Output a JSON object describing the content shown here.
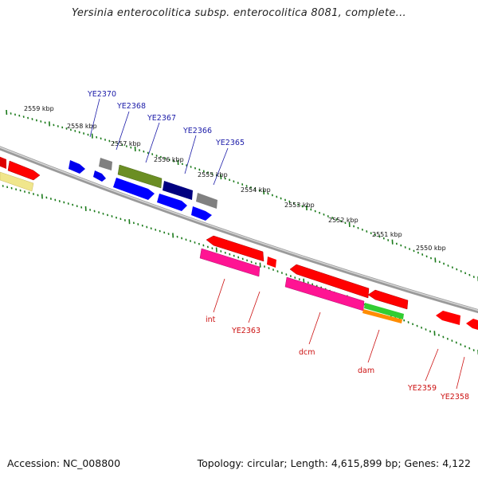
{
  "header": {
    "title": "Yersinia enterocolitica subsp. enterocolitica 8081, complete..."
  },
  "footer": {
    "accession": "Accession: NC_008800",
    "summary": "Topology: circular; Length: 4,615,899 bp; Genes: 4,122"
  },
  "ruler": {
    "ticks": [
      "2559 kbp",
      "2558 kbp",
      "2557 kbp",
      "2556 kbp",
      "2555 kbp",
      "2554 kbp",
      "2553 kbp",
      "2552 kbp",
      "2551 kbp",
      "2550 kbp"
    ]
  },
  "genes_forward_labels": [
    "YE2370",
    "YE2368",
    "YE2367",
    "YE2366",
    "YE2365"
  ],
  "genes_reverse_labels": [
    "int",
    "YE2363",
    "dcm",
    "dam",
    "YE2359",
    "YE2358"
  ],
  "colors": {
    "forward_label": "#1a1aa8",
    "reverse_label": "#cc1111",
    "ruler_dots": "#1a7a1a",
    "backbone": "#888888",
    "red": "#ff0000",
    "blue": "#0000ff",
    "magenta": "#ff1493",
    "olive": "#6b8e23",
    "navy": "#000080",
    "grey": "#808080",
    "khaki": "#f0e68c",
    "green": "#32cd32",
    "orange": "#ff8c00"
  }
}
